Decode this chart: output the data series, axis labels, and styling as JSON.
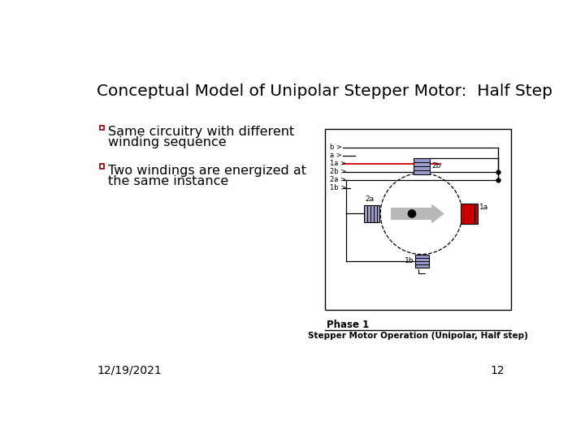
{
  "title": "Conceptual Model of Unipolar Stepper Motor:  Half Step",
  "bullet1_line1": "Same circuitry with different",
  "bullet1_line2": "winding sequence",
  "bullet2_line1": "Two windings are energized at",
  "bullet2_line2": "the same instance",
  "date": "12/19/2021",
  "page": "12",
  "caption1": "Phase 1",
  "caption2": "Stepper Motor Operation (Unipolar, Half step)",
  "bg_color": "#ffffff",
  "title_color": "#000000",
  "text_color": "#000000",
  "bullet_color": "#8B0000",
  "diagram_labels": [
    "b",
    "a",
    "1a",
    "2b",
    "2a",
    "1b"
  ],
  "coil_blue_color": "#9999cc",
  "coil_red_color": "#cc0000",
  "wire_red_color": "#cc0000",
  "wire_black_color": "#000000",
  "title_fontsize": 14.5,
  "bullet_fontsize": 11.5,
  "date_fontsize": 10
}
